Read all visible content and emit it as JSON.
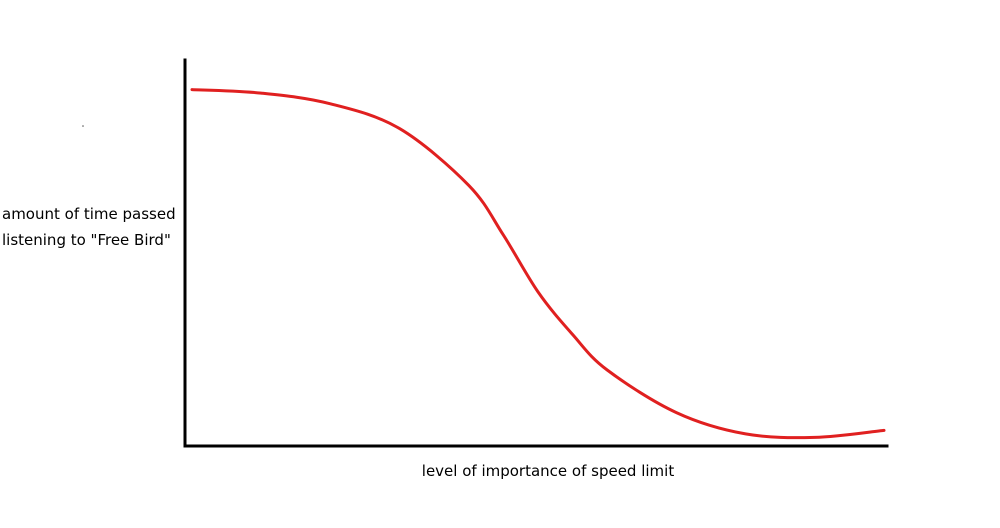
{
  "chart_data": {
    "type": "line",
    "title": "",
    "xlabel": "level of importance of speed limit",
    "ylabel_lines": [
      "amount of time passed",
      "listening to \"Free Bird\""
    ],
    "xlim": [
      0,
      1
    ],
    "ylim": [
      0,
      1
    ],
    "grid": false,
    "axis_ticks": false,
    "series": [
      {
        "color": "#e02020",
        "x": [
          0.0,
          0.1,
          0.2,
          0.3,
          0.4,
          0.45,
          0.5,
          0.55,
          0.6,
          0.7,
          0.8,
          0.9,
          1.0
        ],
        "y": [
          0.99,
          0.98,
          0.95,
          0.88,
          0.72,
          0.58,
          0.42,
          0.3,
          0.2,
          0.08,
          0.02,
          0.01,
          0.03
        ]
      }
    ]
  }
}
